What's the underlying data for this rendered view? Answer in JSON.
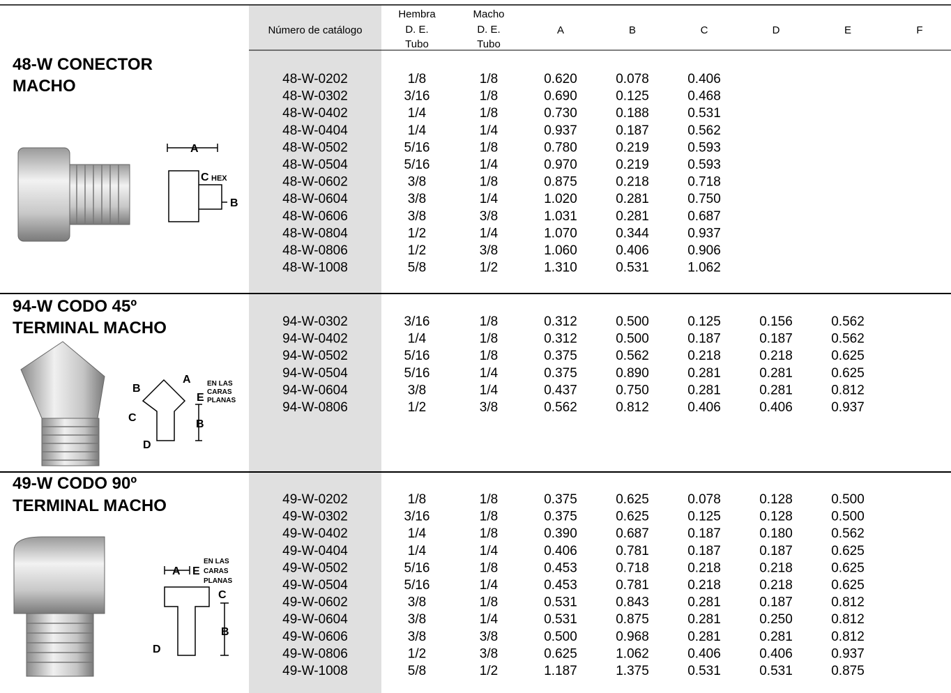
{
  "header": {
    "columns": [
      [
        "Número de catálogo"
      ],
      [
        "Hembra",
        "D. E.",
        "Tubo"
      ],
      [
        "Macho",
        "D. E.",
        "Tubo"
      ],
      [
        "A"
      ],
      [
        "B"
      ],
      [
        "C"
      ],
      [
        "D"
      ],
      [
        "E"
      ],
      [
        "F"
      ]
    ]
  },
  "sections": [
    {
      "title": [
        "48-W CONECTOR",
        "MACHO"
      ],
      "diagram_labels": [
        "A",
        "C",
        "HEX",
        "B"
      ],
      "rows": [
        [
          "48-W-0202",
          "1/8",
          "1/8",
          "0.620",
          "0.078",
          "0.406"
        ],
        [
          "48-W-0302",
          "3/16",
          "1/8",
          "0.690",
          "0.125",
          "0.468"
        ],
        [
          "48-W-0402",
          "1/4",
          "1/8",
          "0.730",
          "0.188",
          "0.531"
        ],
        [
          "48-W-0404",
          "1/4",
          "1/4",
          "0.937",
          "0.187",
          "0.562"
        ],
        [
          "48-W-0502",
          "5/16",
          "1/8",
          "0.780",
          "0.219",
          "0.593"
        ],
        [
          "48-W-0504",
          "5/16",
          "1/4",
          "0.970",
          "0.219",
          "0.593"
        ],
        [
          "48-W-0602",
          "3/8",
          "1/8",
          "0.875",
          "0.218",
          "0.718"
        ],
        [
          "48-W-0604",
          "3/8",
          "1/4",
          "1.020",
          "0.281",
          "0.750"
        ],
        [
          "48-W-0606",
          "3/8",
          "3/8",
          "1.031",
          "0.281",
          "0.687"
        ],
        [
          "48-W-0804",
          "1/2",
          "1/4",
          "1.070",
          "0.344",
          "0.937"
        ],
        [
          "48-W-0806",
          "1/2",
          "3/8",
          "1.060",
          "0.406",
          "0.906"
        ],
        [
          "48-W-1008",
          "5/8",
          "1/2",
          "1.310",
          "0.531",
          "1.062"
        ]
      ]
    },
    {
      "title": [
        "94-W CODO 45º",
        "TERMINAL MACHO"
      ],
      "diagram_labels": [
        "A",
        "B",
        "E",
        "EN LAS",
        "CARAS",
        "PLANAS",
        "C",
        "B",
        "D"
      ],
      "rows": [
        [
          "94-W-0302",
          "3/16",
          "1/8",
          "0.312",
          "0.500",
          "0.125",
          "0.156",
          "0.562"
        ],
        [
          "94-W-0402",
          "1/4",
          "1/8",
          "0.312",
          "0.500",
          "0.187",
          "0.187",
          "0.562"
        ],
        [
          "94-W-0502",
          "5/16",
          "1/8",
          "0.375",
          "0.562",
          "0.218",
          "0.218",
          "0.625"
        ],
        [
          "94-W-0504",
          "5/16",
          "1/4",
          "0.375",
          "0.890",
          "0.281",
          "0.281",
          "0.625"
        ],
        [
          "94-W-0604",
          "3/8",
          "1/4",
          "0.437",
          "0.750",
          "0.281",
          "0.281",
          "0.812"
        ],
        [
          "94-W-0806",
          "1/2",
          "3/8",
          "0.562",
          "0.812",
          "0.406",
          "0.406",
          "0.937"
        ]
      ]
    },
    {
      "title": [
        "49-W CODO 90º",
        "TERMINAL MACHO"
      ],
      "diagram_labels": [
        "A",
        "E",
        "EN LAS",
        "CARAS",
        "PLANAS",
        "C",
        "B",
        "D"
      ],
      "rows": [
        [
          "49-W-0202",
          "1/8",
          "1/8",
          "0.375",
          "0.625",
          "0.078",
          "0.128",
          "0.500"
        ],
        [
          "49-W-0302",
          "3/16",
          "1/8",
          "0.375",
          "0.625",
          "0.125",
          "0.128",
          "0.500"
        ],
        [
          "49-W-0402",
          "1/4",
          "1/8",
          "0.390",
          "0.687",
          "0.187",
          "0.180",
          "0.562"
        ],
        [
          "49-W-0404",
          "1/4",
          "1/4",
          "0.406",
          "0.781",
          "0.187",
          "0.187",
          "0.625"
        ],
        [
          "49-W-0502",
          "5/16",
          "1/8",
          "0.453",
          "0.718",
          "0.218",
          "0.218",
          "0.625"
        ],
        [
          "49-W-0504",
          "5/16",
          "1/4",
          "0.453",
          "0.781",
          "0.218",
          "0.218",
          "0.625"
        ],
        [
          "49-W-0602",
          "3/8",
          "1/8",
          "0.531",
          "0.843",
          "0.281",
          "0.187",
          "0.812"
        ],
        [
          "49-W-0604",
          "3/8",
          "1/4",
          "0.531",
          "0.875",
          "0.281",
          "0.250",
          "0.812"
        ],
        [
          "49-W-0606",
          "3/8",
          "3/8",
          "0.500",
          "0.968",
          "0.281",
          "0.281",
          "0.812"
        ],
        [
          "49-W-0806",
          "1/2",
          "3/8",
          "0.625",
          "1.062",
          "0.406",
          "0.406",
          "0.937"
        ],
        [
          "49-W-1008",
          "5/8",
          "1/2",
          "1.187",
          "1.375",
          "0.531",
          "0.531",
          "0.875"
        ]
      ]
    }
  ]
}
